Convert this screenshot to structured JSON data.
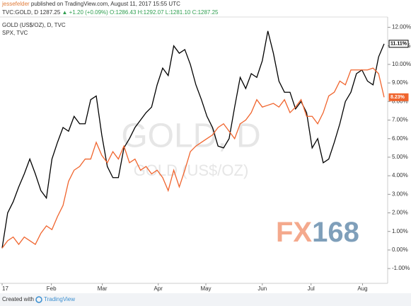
{
  "chart_data": {
    "type": "line",
    "header": {
      "author": "jessefelder",
      "published": " published on TradingView.com, August 11, 2017 15:55 UTC",
      "symbol": "TVC:GOLD, D",
      "price": "1287.25",
      "change": "▲ +1.20 (+0.09%)",
      "ohlc": "O:1286.43 H:1292.07 L:1281.10 C:1287.25"
    },
    "watermark": {
      "title": "GOLD, D",
      "subtitle": "GOLD (US$/OZ)"
    },
    "logo": {
      "a": "FX",
      "b": "168"
    },
    "footer": {
      "created": "Created with",
      "brand": "TradingView"
    },
    "xlim": [
      0,
      69
    ],
    "xticks": [
      {
        "value": 0,
        "label": "17"
      },
      {
        "value": 8.9,
        "label": "Feb"
      },
      {
        "value": 18.1,
        "label": "Mar"
      },
      {
        "value": 28.2,
        "label": "Apr"
      },
      {
        "value": 36.8,
        "label": "May"
      },
      {
        "value": 47,
        "label": "Jun"
      },
      {
        "value": 55.8,
        "label": "Jul"
      },
      {
        "value": 65.1,
        "label": "Aug"
      }
    ],
    "ylim": [
      -1.72,
      12.63
    ],
    "yticks": [
      {
        "value": -1,
        "label": "-1.00%"
      },
      {
        "value": 0,
        "label": "0.00%"
      },
      {
        "value": 1,
        "label": "1.00%"
      },
      {
        "value": 2,
        "label": "2.00%"
      },
      {
        "value": 3,
        "label": "3.00%"
      },
      {
        "value": 4,
        "label": "4.00%"
      },
      {
        "value": 5,
        "label": "5.00%"
      },
      {
        "value": 6,
        "label": "6.00%"
      },
      {
        "value": 7,
        "label": "7.00%"
      },
      {
        "value": 8,
        "label": "8.00%"
      },
      {
        "value": 9,
        "label": "9.00%"
      },
      {
        "value": 10,
        "label": "10.00%"
      },
      {
        "value": 11,
        "label": "11.00%"
      },
      {
        "value": 12,
        "label": "12.00%"
      }
    ],
    "grid": false,
    "series": [
      {
        "name": "GOLD (US$/OZ), D, TVC",
        "color": "#000000",
        "last_label": "11.11%",
        "values": [
          0.1,
          2.0,
          2.6,
          3.4,
          4.1,
          4.9,
          4.1,
          3.2,
          2.8,
          4.9,
          5.8,
          6.6,
          6.4,
          7.2,
          6.8,
          6.8,
          8.1,
          8.3,
          6.2,
          4.5,
          3.9,
          3.9,
          5.5,
          6.0,
          6.6,
          7.0,
          7.4,
          7.7,
          8.9,
          9.8,
          9.4,
          11.0,
          10.6,
          10.8,
          10.0,
          8.9,
          8.1,
          7.2,
          6.6,
          5.6,
          5.5,
          6.0,
          7.7,
          9.3,
          8.7,
          9.5,
          9.3,
          10.2,
          11.8,
          10.6,
          9.1,
          8.5,
          8.5,
          7.6,
          8.0,
          7.4,
          5.5,
          6.0,
          4.7,
          4.9,
          5.8,
          6.8,
          8.0,
          8.5,
          9.5,
          9.7,
          9.1,
          8.9,
          10.4,
          11.11
        ]
      },
      {
        "name": "SPX, TVC",
        "color": "#f0642d",
        "last_label": "8.23%",
        "values": [
          0.1,
          0.5,
          0.7,
          0.3,
          0.7,
          0.5,
          0.3,
          0.9,
          1.3,
          1.1,
          1.8,
          2.4,
          3.7,
          4.3,
          4.5,
          4.9,
          4.9,
          5.8,
          5.1,
          4.7,
          5.3,
          4.9,
          5.6,
          4.7,
          4.9,
          4.3,
          4.5,
          4.1,
          4.3,
          3.9,
          3.2,
          4.3,
          3.4,
          4.3,
          5.3,
          5.6,
          5.8,
          6.0,
          6.2,
          6.6,
          6.8,
          6.4,
          6.0,
          6.8,
          7.0,
          7.4,
          8.1,
          7.7,
          7.8,
          7.9,
          7.7,
          8.1,
          7.4,
          7.7,
          8.1,
          7.2,
          7.2,
          6.8,
          7.4,
          8.3,
          8.5,
          9.1,
          8.9,
          9.7,
          9.7,
          9.7,
          9.7,
          9.8,
          9.5,
          8.23
        ]
      }
    ]
  }
}
